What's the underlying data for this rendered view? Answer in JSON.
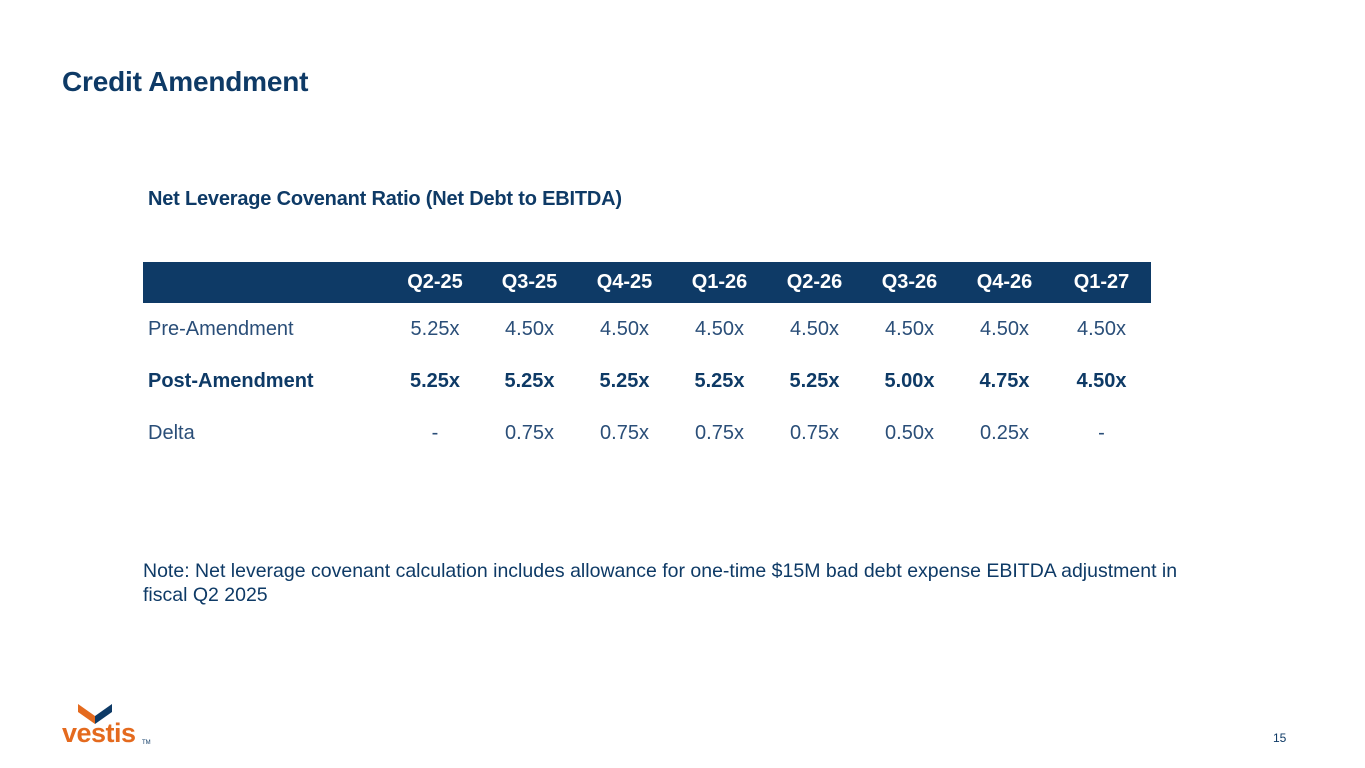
{
  "slide": {
    "title": "Credit Amendment",
    "subtitle": "Net Leverage Covenant Ratio (Net Debt to EBITDA)",
    "page_number": "15"
  },
  "table": {
    "columns": [
      "",
      "Q2-25",
      "Q3-25",
      "Q4-25",
      "Q1-26",
      "Q2-26",
      "Q3-26",
      "Q4-26",
      "Q1-27"
    ],
    "rows": [
      {
        "label": "Pre-Amendment",
        "bold": false,
        "values": [
          "5.25x",
          "4.50x",
          "4.50x",
          "4.50x",
          "4.50x",
          "4.50x",
          "4.50x",
          "4.50x"
        ]
      },
      {
        "label": "Post-Amendment",
        "bold": true,
        "values": [
          "5.25x",
          "5.25x",
          "5.25x",
          "5.25x",
          "5.25x",
          "5.00x",
          "4.75x",
          "4.50x"
        ]
      },
      {
        "label": "Delta",
        "bold": false,
        "values": [
          "-",
          "0.75x",
          "0.75x",
          "0.75x",
          "0.75x",
          "0.50x",
          "0.25x",
          "-"
        ]
      }
    ]
  },
  "note": "Note: Net leverage covenant calculation includes allowance for one-time $15M bad debt expense EBITDA adjustment in fiscal Q2 2025",
  "logo": {
    "text": "vestis",
    "trademark": "TM",
    "icon": "vestis-chevron-icon"
  },
  "colors": {
    "navy": "#0e3a66",
    "orange": "#e46a1e",
    "white": "#ffffff"
  }
}
